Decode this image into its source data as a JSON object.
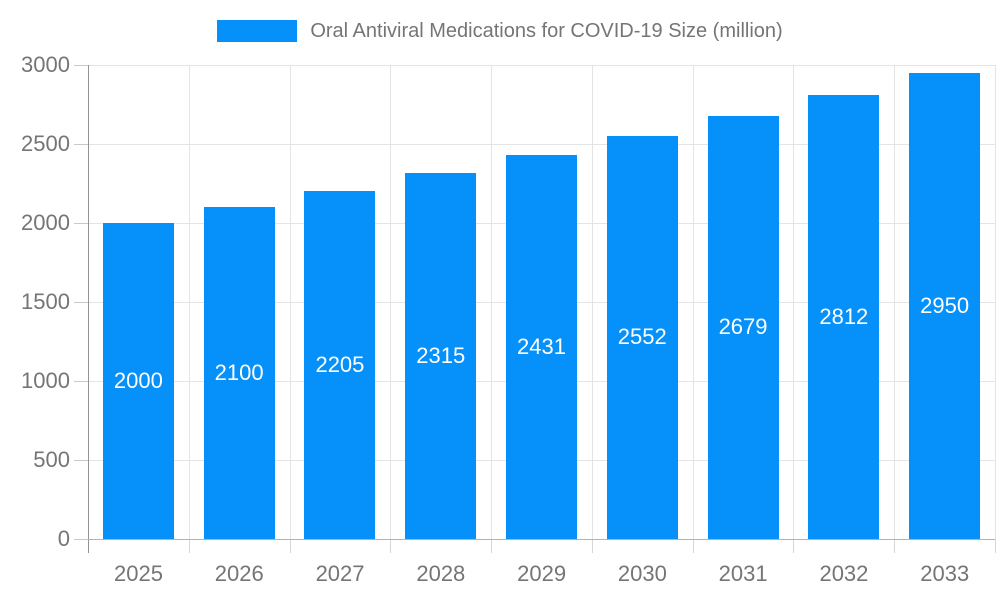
{
  "legend": {
    "label": "Oral Antiviral Medications for COVID-19 Size (million)"
  },
  "colors": {
    "bar": "#0590fa",
    "legend_swatch": "#0590fa",
    "axis_text": "#757575",
    "value_label_text": "#ffffff",
    "grid_line": "#e4e4e4",
    "y_axis_line": "#949494",
    "x_axis_line": "#b3b3b3"
  },
  "chart_data": {
    "type": "bar",
    "title": "Oral Antiviral Medications for COVID-19 Size (million)",
    "legend": [
      "Oral Antiviral Medications for COVID-19 Size (million)"
    ],
    "legend_position": "top-center",
    "categories": [
      "2025",
      "2026",
      "2027",
      "2028",
      "2029",
      "2030",
      "2031",
      "2032",
      "2033"
    ],
    "values": [
      2000,
      2100,
      2205,
      2315,
      2431,
      2552,
      2679,
      2812,
      2950
    ],
    "bar_value_labels": [
      "2000",
      "2100",
      "2205",
      "2315",
      "2431",
      "2552",
      "2679",
      "2812",
      "2950"
    ],
    "bar_value_label_position": "inside-center",
    "xlabel": "",
    "ylabel": "",
    "ylim": [
      0,
      3000
    ],
    "yticks": [
      0,
      500,
      1000,
      1500,
      2000,
      2500,
      3000
    ],
    "grid": true
  }
}
